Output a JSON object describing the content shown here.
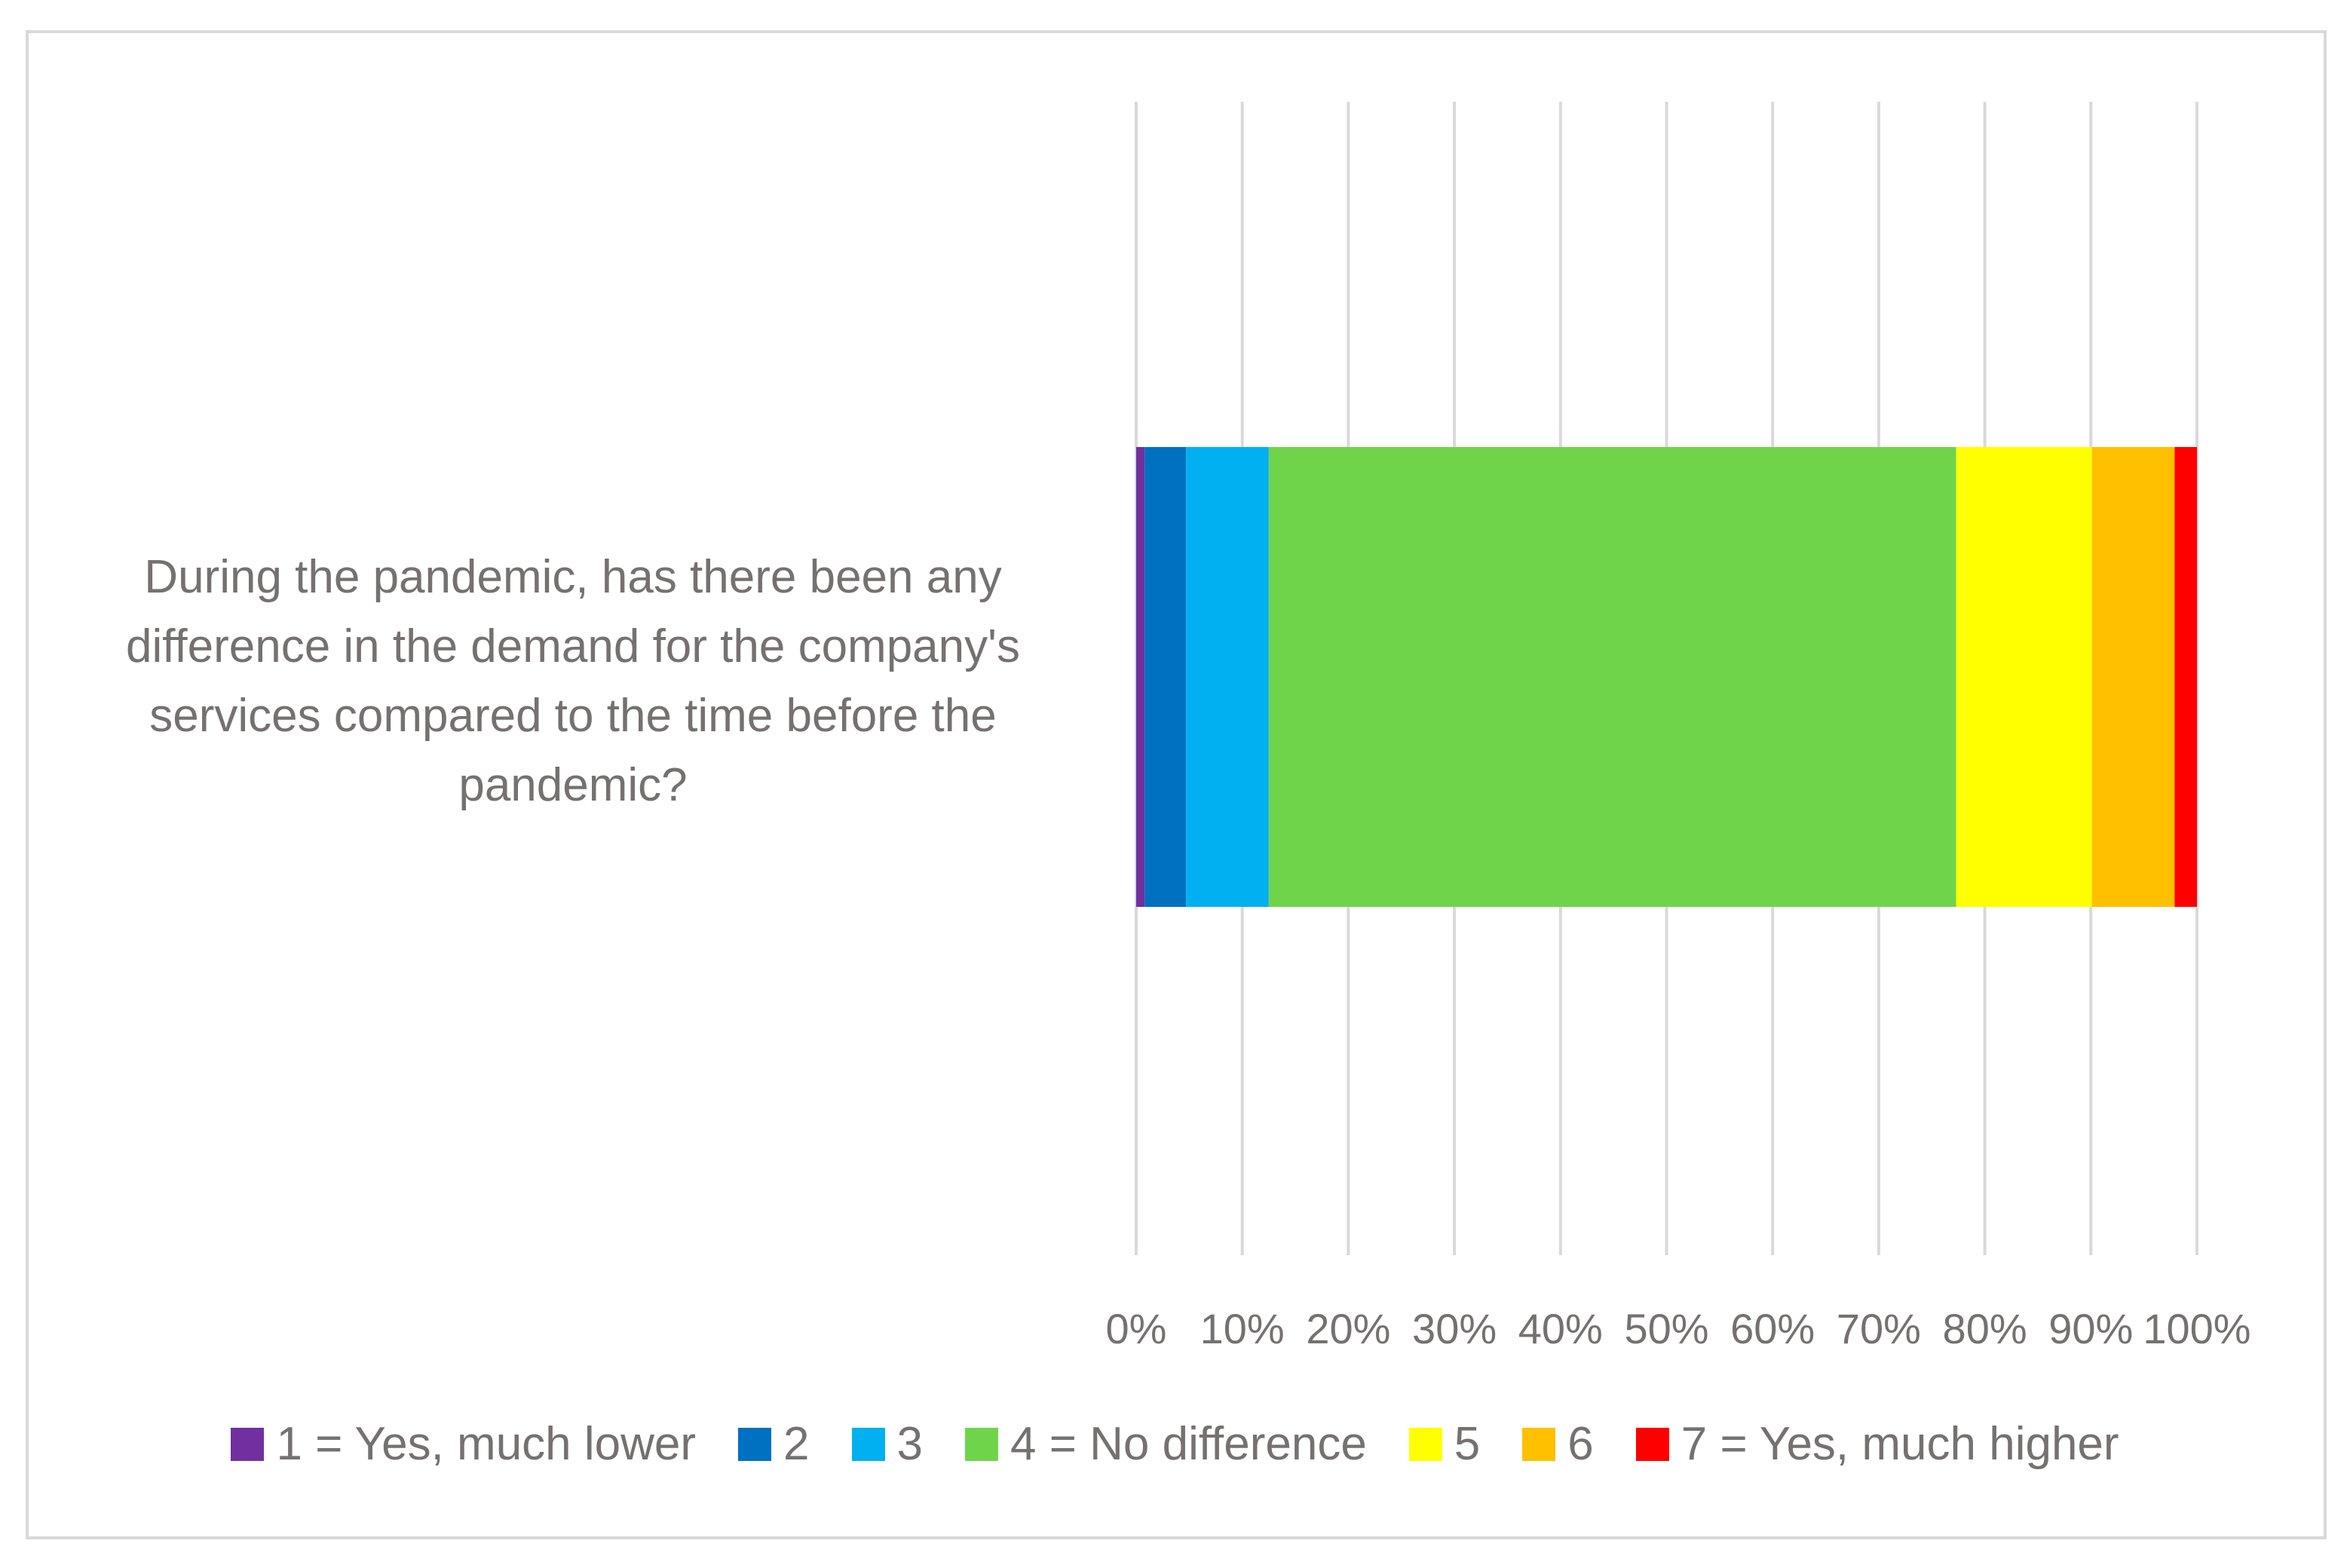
{
  "chart_data": {
    "type": "bar",
    "orientation": "horizontal",
    "stacked": "percent",
    "categories": [
      "During the pandemic, has there been any difference in the demand for the company's services compared to the time before the pandemic?"
    ],
    "series": [
      {
        "name": "1 = Yes, much lower",
        "color": "#7030A0",
        "values": [
          0.8
        ]
      },
      {
        "name": "2",
        "color": "#0070C0",
        "values": [
          3.9
        ]
      },
      {
        "name": "3",
        "color": "#00B0F0",
        "values": [
          7.8
        ]
      },
      {
        "name": "4 = No difference",
        "color": "#70D44B",
        "values": [
          64.8
        ]
      },
      {
        "name": "5",
        "color": "#FFFF00",
        "values": [
          12.8
        ]
      },
      {
        "name": "6",
        "color": "#FFC000",
        "values": [
          7.8
        ]
      },
      {
        "name": "7 = Yes, much higher",
        "color": "#FF0000",
        "values": [
          2.1
        ]
      }
    ],
    "xlim": [
      0,
      100
    ],
    "xticks": [
      "0%",
      "10%",
      "20%",
      "30%",
      "40%",
      "50%",
      "60%",
      "70%",
      "80%",
      "90%",
      "100%"
    ],
    "grid": "vertical",
    "legend_position": "bottom"
  }
}
